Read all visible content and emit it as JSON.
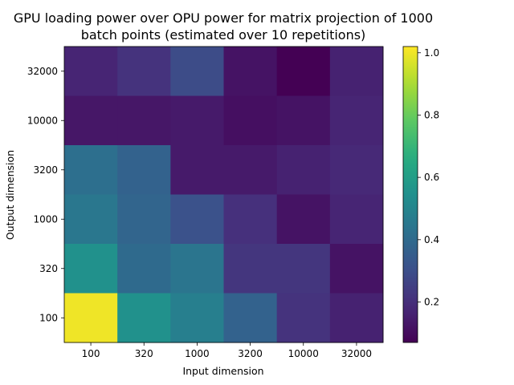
{
  "chart_data": {
    "type": "heatmap",
    "title_line1": "GPU loading power over OPU power for matrix projection of 1000",
    "title_line2": "batch points (estimated over 10 repetitions)",
    "xlabel": "Input dimension",
    "ylabel": "Output dimension",
    "x_categories": [
      "100",
      "320",
      "1000",
      "3200",
      "10000",
      "32000"
    ],
    "y_categories": [
      "32000",
      "10000",
      "3200",
      "1000",
      "320",
      "100"
    ],
    "values": [
      [
        0.17,
        0.21,
        0.29,
        0.12,
        0.07,
        0.16
      ],
      [
        0.13,
        0.13,
        0.14,
        0.11,
        0.12,
        0.17
      ],
      [
        0.42,
        0.37,
        0.14,
        0.14,
        0.16,
        0.18
      ],
      [
        0.45,
        0.38,
        0.31,
        0.2,
        0.12,
        0.17
      ],
      [
        0.55,
        0.4,
        0.44,
        0.22,
        0.22,
        0.12
      ],
      [
        1.0,
        0.55,
        0.48,
        0.37,
        0.21,
        0.16
      ]
    ],
    "colormap": "viridis",
    "colorbar": {
      "range": [
        0.07,
        1.02
      ],
      "ticks": [
        "0.2",
        "0.4",
        "0.6",
        "0.8",
        "1.0"
      ],
      "tick_values": [
        0.2,
        0.4,
        0.6,
        0.8,
        1.0
      ]
    }
  }
}
